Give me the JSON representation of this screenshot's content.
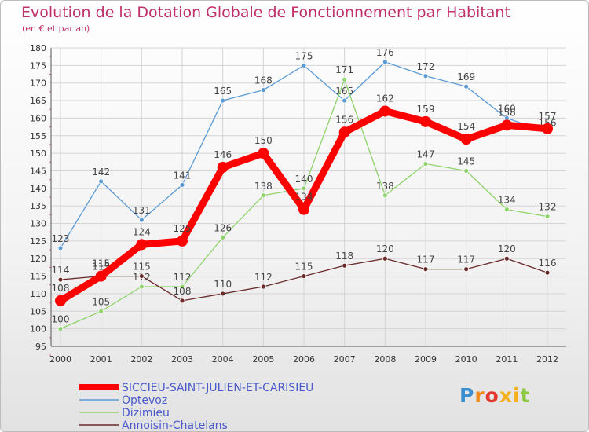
{
  "header": {
    "title": "Evolution de la Dotation Globale de Fonctionnement par Habitant",
    "subtitle": "(en € et par an)"
  },
  "logo": {
    "text": "Proxiti"
  },
  "chart_data": {
    "type": "line",
    "x": [
      "2000",
      "2001",
      "2002",
      "2003",
      "2004",
      "2005",
      "2006",
      "2007",
      "2008",
      "2009",
      "2010",
      "2011",
      "2012"
    ],
    "ylim": [
      95,
      180
    ],
    "yticks": [
      95,
      100,
      105,
      110,
      115,
      120,
      125,
      130,
      135,
      140,
      145,
      150,
      155,
      160,
      165,
      170,
      175,
      180
    ],
    "grid": true,
    "legend_position": "bottom-left",
    "series": [
      {
        "name": "SICCIEU-SAINT-JULIEN-ET-CARISIEU",
        "color": "#ff0000",
        "values": [
          108,
          115,
          124,
          125,
          146,
          150,
          134,
          156,
          162,
          159,
          154,
          158,
          157
        ]
      },
      {
        "name": "Optevoz",
        "color": "#5b9bd5",
        "values": [
          123,
          142,
          131,
          141,
          165,
          168,
          175,
          165,
          176,
          172,
          169,
          160,
          156
        ]
      },
      {
        "name": "Dizimieu",
        "color": "#8ed36b",
        "values": [
          100,
          105,
          112,
          112,
          126,
          138,
          140,
          171,
          138,
          147,
          145,
          134,
          132
        ]
      },
      {
        "name": "Annoisin-Chatelans",
        "color": "#6b2a2a",
        "values": [
          114,
          115,
          115,
          108,
          110,
          112,
          115,
          118,
          120,
          117,
          117,
          120,
          116
        ]
      }
    ]
  }
}
